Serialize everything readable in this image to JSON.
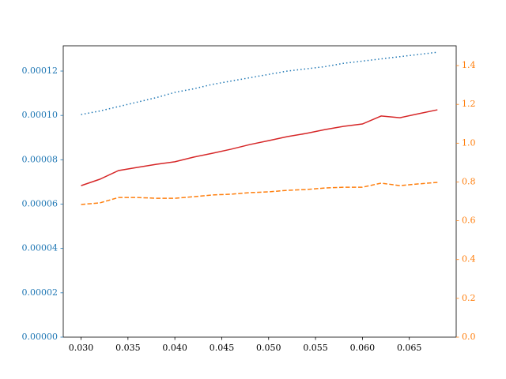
{
  "chart_data": {
    "type": "line",
    "x": [
      0.03,
      0.032,
      0.034,
      0.036,
      0.038,
      0.04,
      0.042,
      0.044,
      0.046,
      0.048,
      0.05,
      0.052,
      0.054,
      0.056,
      0.058,
      0.06,
      0.062,
      0.064,
      0.066,
      0.068
    ],
    "series": [
      {
        "color": "#1f77b4",
        "linestyle": "dotted",
        "axis": "y",
        "values": [
          0.0001004,
          0.000102,
          0.000104,
          0.000106,
          0.000108,
          0.0001104,
          0.000112,
          0.000114,
          0.0001155,
          0.000117,
          0.0001185,
          0.00012,
          0.000121,
          0.000122,
          0.0001235,
          0.0001245,
          0.0001255,
          0.0001265,
          0.0001275,
          0.0001285
        ]
      },
      {
        "color": "#d62728",
        "linestyle": "solid",
        "axis": "y2",
        "values": [
          0.781,
          0.814,
          0.859,
          0.875,
          0.891,
          0.904,
          0.928,
          0.948,
          0.969,
          0.993,
          1.013,
          1.034,
          1.05,
          1.07,
          1.087,
          1.099,
          1.14,
          1.131,
          1.152,
          1.172
        ]
      },
      {
        "color": "#ff7f0e",
        "linestyle": "dashed",
        "axis": "y2",
        "values": [
          0.684,
          0.692,
          0.72,
          0.72,
          0.716,
          0.716,
          0.724,
          0.733,
          0.737,
          0.745,
          0.749,
          0.757,
          0.761,
          0.769,
          0.773,
          0.773,
          0.794,
          0.781,
          0.79,
          0.798
        ]
      }
    ],
    "xlim": [
      0.0281,
      0.07
    ],
    "xticks": [
      {
        "value": 0.03,
        "label": "0.030"
      },
      0.035,
      {
        "value": 0.04,
        "label": "0.040"
      },
      0.045,
      {
        "value": 0.05,
        "label": "0.050"
      },
      0.055,
      {
        "value": 0.06,
        "label": "0.060"
      },
      0.065
    ],
    "ylim": [
      0,
      0.0001314
    ],
    "yticks": [
      {
        "value": 0,
        "label": "0.00000"
      },
      {
        "value": 2e-05,
        "label": "0.00002"
      },
      {
        "value": 4e-05,
        "label": "0.00004"
      },
      {
        "value": 6e-05,
        "label": "0.00006"
      },
      {
        "value": 8e-05,
        "label": "0.00008"
      },
      {
        "value": 0.0001,
        "label": "0.00010"
      },
      {
        "value": 0.00012,
        "label": "0.00012"
      }
    ],
    "ycolor": "#1f77b4",
    "y2lim": [
      0,
      1.502
    ],
    "y2ticks": [
      {
        "value": 0,
        "label": "0.0"
      },
      0.2,
      0.4,
      0.6,
      0.8,
      {
        "value": 1,
        "label": "1.0"
      },
      1.2,
      1.4
    ],
    "y2color": "#ff7f0e",
    "grid": false
  }
}
